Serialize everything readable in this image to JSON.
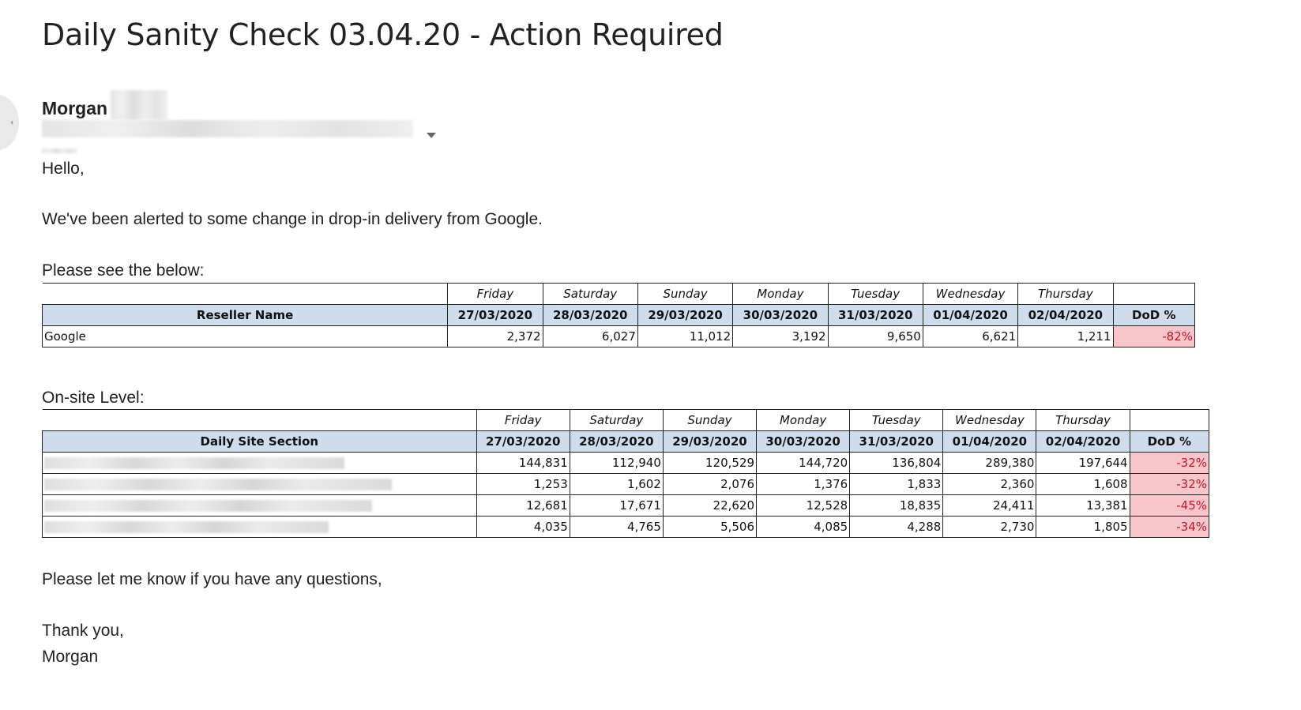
{
  "email": {
    "subject": "Daily Sanity Check 03.04.20 - Action Required",
    "sender_name": "Morgan",
    "greeting": "Hello,",
    "intro": "We've been alerted to some change in drop-in delivery from Google.",
    "see_below": "Please see the below:",
    "onsite_label": "On-site Level:",
    "closing": "Please let me know if you have any questions,",
    "thanks": "Thank you,",
    "signature": "Morgan"
  },
  "days": [
    "Friday",
    "Saturday",
    "Sunday",
    "Monday",
    "Tuesday",
    "Wednesday",
    "Thursday"
  ],
  "dates": [
    "27/03/2020",
    "28/03/2020",
    "29/03/2020",
    "30/03/2020",
    "31/03/2020",
    "01/04/2020",
    "02/04/2020"
  ],
  "reseller_table": {
    "name_header": "Reseller Name",
    "dod_header": "DoD %",
    "rows": [
      {
        "name": "Google",
        "values": [
          "2,372",
          "6,027",
          "11,012",
          "3,192",
          "9,650",
          "6,621",
          "1,211"
        ],
        "dod": "-82%"
      }
    ]
  },
  "site_table": {
    "name_header": "Daily Site Section",
    "dod_header": "DoD %",
    "rows": [
      {
        "values": [
          "144,831",
          "112,940",
          "120,529",
          "144,720",
          "136,804",
          "289,380",
          "197,644"
        ],
        "dod": "-32%"
      },
      {
        "values": [
          "1,253",
          "1,602",
          "2,076",
          "1,376",
          "1,833",
          "2,360",
          "1,608"
        ],
        "dod": "-32%"
      },
      {
        "values": [
          "12,681",
          "17,671",
          "22,620",
          "12,528",
          "18,835",
          "24,411",
          "13,381"
        ],
        "dod": "-45%"
      },
      {
        "values": [
          "4,035",
          "4,765",
          "5,506",
          "4,085",
          "4,288",
          "2,730",
          "1,805"
        ],
        "dod": "-34%"
      }
    ]
  },
  "colors": {
    "header_fill": "#cfdcec",
    "dod_fill": "#f8c5cb",
    "dod_text": "#c0182a"
  }
}
